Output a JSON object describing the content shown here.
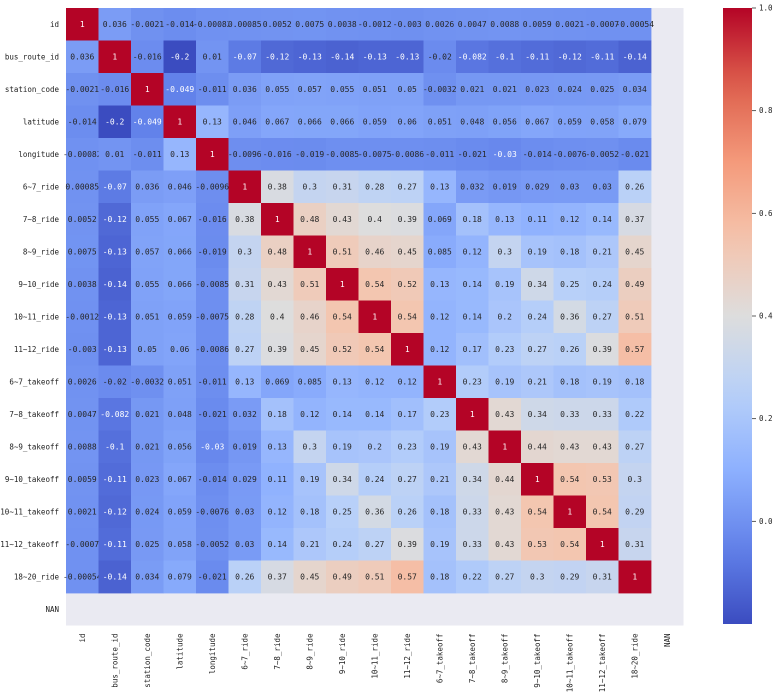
{
  "chart_data": {
    "type": "heatmap",
    "colormap": "coolwarm",
    "vmin": -0.2,
    "vmax": 1.0,
    "labels": [
      "id",
      "bus_route_id",
      "station_code",
      "latitude",
      "longitude",
      "6~7_ride",
      "7~8_ride",
      "8~9_ride",
      "9~10_ride",
      "10~11_ride",
      "11~12_ride",
      "6~7_takeoff",
      "7~8_takeoff",
      "8~9_takeoff",
      "9~10_takeoff",
      "10~11_takeoff",
      "11~12_takeoff",
      "18~20_ride",
      "NAN"
    ],
    "matrix": [
      [
        1,
        0.036,
        -0.0021,
        -0.014,
        -0.00082,
        0.00085,
        0.0052,
        0.0075,
        0.0038,
        -0.0012,
        -0.003,
        0.0026,
        0.0047,
        0.0088,
        0.0059,
        0.0021,
        -0.0007,
        -0.00054,
        null
      ],
      [
        0.036,
        1,
        -0.016,
        -0.2,
        0.01,
        -0.07,
        -0.12,
        -0.13,
        -0.14,
        -0.13,
        -0.13,
        -0.02,
        -0.082,
        -0.1,
        -0.11,
        -0.12,
        -0.11,
        -0.14,
        null
      ],
      [
        -0.0021,
        -0.016,
        1,
        -0.049,
        -0.011,
        0.036,
        0.055,
        0.057,
        0.055,
        0.051,
        0.05,
        -0.0032,
        0.021,
        0.021,
        0.023,
        0.024,
        0.025,
        0.034,
        null
      ],
      [
        -0.014,
        -0.2,
        -0.049,
        1,
        0.13,
        0.046,
        0.067,
        0.066,
        0.066,
        0.059,
        0.06,
        0.051,
        0.048,
        0.056,
        0.067,
        0.059,
        0.058,
        0.079,
        null
      ],
      [
        -0.00082,
        0.01,
        -0.011,
        0.13,
        1,
        -0.0096,
        -0.016,
        -0.019,
        -0.0085,
        -0.0075,
        -0.0086,
        -0.011,
        -0.021,
        -0.03,
        -0.014,
        -0.0076,
        -0.0052,
        -0.021,
        null
      ],
      [
        0.00085,
        -0.07,
        0.036,
        0.046,
        -0.0096,
        1,
        0.38,
        0.3,
        0.31,
        0.28,
        0.27,
        0.13,
        0.032,
        0.019,
        0.029,
        0.03,
        0.03,
        0.26,
        null
      ],
      [
        0.0052,
        -0.12,
        0.055,
        0.067,
        -0.016,
        0.38,
        1,
        0.48,
        0.43,
        0.4,
        0.39,
        0.069,
        0.18,
        0.13,
        0.11,
        0.12,
        0.14,
        0.37,
        null
      ],
      [
        0.0075,
        -0.13,
        0.057,
        0.066,
        -0.019,
        0.3,
        0.48,
        1,
        0.51,
        0.46,
        0.45,
        0.085,
        0.12,
        0.3,
        0.19,
        0.18,
        0.21,
        0.45,
        null
      ],
      [
        0.0038,
        -0.14,
        0.055,
        0.066,
        -0.0085,
        0.31,
        0.43,
        0.51,
        1,
        0.54,
        0.52,
        0.13,
        0.14,
        0.19,
        0.34,
        0.25,
        0.24,
        0.49,
        null
      ],
      [
        -0.0012,
        -0.13,
        0.051,
        0.059,
        -0.0075,
        0.28,
        0.4,
        0.46,
        0.54,
        1,
        0.54,
        0.12,
        0.14,
        0.2,
        0.24,
        0.36,
        0.27,
        0.51,
        null
      ],
      [
        -0.003,
        -0.13,
        0.05,
        0.06,
        -0.0086,
        0.27,
        0.39,
        0.45,
        0.52,
        0.54,
        1,
        0.12,
        0.17,
        0.23,
        0.27,
        0.26,
        0.39,
        0.57,
        null
      ],
      [
        0.0026,
        -0.02,
        -0.0032,
        0.051,
        -0.011,
        0.13,
        0.069,
        0.085,
        0.13,
        0.12,
        0.12,
        1,
        0.23,
        0.19,
        0.21,
        0.18,
        0.19,
        0.18,
        null
      ],
      [
        0.0047,
        -0.082,
        0.021,
        0.048,
        -0.021,
        0.032,
        0.18,
        0.12,
        0.14,
        0.14,
        0.17,
        0.23,
        1,
        0.43,
        0.34,
        0.33,
        0.33,
        0.22,
        null
      ],
      [
        0.0088,
        -0.1,
        0.021,
        0.056,
        -0.03,
        0.019,
        0.13,
        0.3,
        0.19,
        0.2,
        0.23,
        0.19,
        0.43,
        1,
        0.44,
        0.43,
        0.43,
        0.27,
        null
      ],
      [
        0.0059,
        -0.11,
        0.023,
        0.067,
        -0.014,
        0.029,
        0.11,
        0.19,
        0.34,
        0.24,
        0.27,
        0.21,
        0.34,
        0.44,
        1,
        0.54,
        0.53,
        0.3,
        null
      ],
      [
        0.0021,
        -0.12,
        0.024,
        0.059,
        -0.0076,
        0.03,
        0.12,
        0.18,
        0.25,
        0.36,
        0.26,
        0.18,
        0.33,
        0.43,
        0.54,
        1,
        0.54,
        0.29,
        null
      ],
      [
        -0.0007,
        -0.11,
        0.025,
        0.058,
        -0.0052,
        0.03,
        0.14,
        0.21,
        0.24,
        0.27,
        0.39,
        0.19,
        0.33,
        0.43,
        0.53,
        0.54,
        1,
        0.31,
        null
      ],
      [
        -0.00054,
        -0.14,
        0.034,
        0.079,
        -0.021,
        0.26,
        0.37,
        0.45,
        0.49,
        0.51,
        0.57,
        0.18,
        0.22,
        0.27,
        0.3,
        0.29,
        0.31,
        1,
        null
      ],
      [
        null,
        null,
        null,
        null,
        null,
        null,
        null,
        null,
        null,
        null,
        null,
        null,
        null,
        null,
        null,
        null,
        null,
        null,
        null
      ]
    ],
    "colorbar_ticks": [
      "0.0",
      "0.2",
      "0.4",
      "0.6",
      "0.8",
      "1.0"
    ],
    "colorbar_tick_values": [
      0.0,
      0.2,
      0.4,
      0.6,
      0.8,
      1.0
    ],
    "nan_color": "#eaeaf2"
  }
}
